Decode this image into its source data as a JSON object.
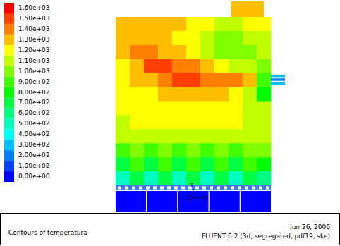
{
  "chart_data": {
    "type": "contour",
    "title": "Contours of temperatura",
    "date": "Jun 26, 2006",
    "footer": "FLUENT 6.2 (3d, segregated, pdf19, ske)",
    "axes_triad": [
      "Y",
      "Z",
      "X"
    ],
    "colorbar_range": [
      0,
      1600
    ],
    "colorbar_ticks": [
      {
        "value": 0,
        "label": "0.00e+00"
      },
      {
        "value": 100,
        "label": "1.00e+02"
      },
      {
        "value": 200,
        "label": "2.00e+02"
      },
      {
        "value": 300,
        "label": "3.00e+02"
      },
      {
        "value": 400,
        "label": "4.00e+02"
      },
      {
        "value": 500,
        "label": "5.00e+02"
      },
      {
        "value": 600,
        "label": "6.00e+02"
      },
      {
        "value": 700,
        "label": "7.00e+02"
      },
      {
        "value": 800,
        "label": "8.00e+02"
      },
      {
        "value": 900,
        "label": "9.00e+02"
      },
      {
        "value": 1000,
        "label": "1.00e+03"
      },
      {
        "value": 1100,
        "label": "1.10e+03"
      },
      {
        "value": 1200,
        "label": "1.20e+03"
      },
      {
        "value": 1300,
        "label": "1.30e+03"
      },
      {
        "value": 1400,
        "label": "1.40e+03"
      },
      {
        "value": 1500,
        "label": "1.50e+03"
      },
      {
        "value": 1600,
        "label": "1.60e+03"
      }
    ],
    "cells": [
      [
        1250,
        1250,
        1250,
        1250,
        1250,
        1200,
        1150,
        1100,
        1100,
        1150,
        1200
      ],
      [
        1250,
        1300,
        1300,
        1250,
        1200,
        1150,
        1050,
        1000,
        1000,
        1050,
        1100
      ],
      [
        1250,
        1350,
        1350,
        1300,
        1250,
        1200,
        1100,
        1000,
        950,
        1000,
        1050
      ],
      [
        1200,
        1300,
        1450,
        1450,
        1400,
        1350,
        1300,
        1200,
        1100,
        1050,
        1000
      ],
      [
        1200,
        1250,
        1300,
        1400,
        1450,
        1450,
        1400,
        1400,
        1350,
        1300,
        900
      ],
      [
        1150,
        1200,
        1200,
        1250,
        1250,
        1300,
        1300,
        1250,
        1200,
        1100,
        800
      ],
      [
        1150,
        1150,
        1150,
        1200,
        1200,
        1200,
        1200,
        1150,
        1150,
        1100,
        1050
      ],
      [
        1100,
        1150,
        1150,
        1150,
        1150,
        1150,
        1150,
        1150,
        1150,
        1100,
        1100
      ],
      [
        1050,
        1100,
        1050,
        1100,
        1050,
        1100,
        1050,
        1100,
        1050,
        1100,
        1050
      ],
      [
        900,
        1000,
        900,
        1000,
        900,
        1000,
        900,
        1000,
        900,
        1000,
        950
      ],
      [
        700,
        850,
        650,
        850,
        650,
        850,
        650,
        850,
        650,
        850,
        750
      ],
      [
        500,
        650,
        450,
        650,
        450,
        650,
        450,
        650,
        450,
        650,
        550
      ]
    ],
    "chimney": 1250,
    "inlet_jets": [
      300,
      200,
      300
    ],
    "ash_pit": [
      30,
      30,
      30,
      30,
      30
    ]
  }
}
